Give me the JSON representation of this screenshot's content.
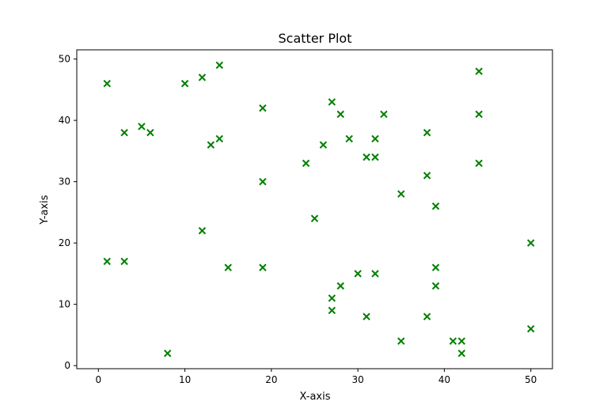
{
  "chart_data": {
    "type": "scatter",
    "title": "Scatter Plot",
    "xlabel": "X-axis",
    "ylabel": "Y-axis",
    "xlim": [
      -2.5,
      52.5
    ],
    "ylim": [
      -0.5,
      51.5
    ],
    "xticks": [
      0,
      10,
      20,
      30,
      40,
      50
    ],
    "yticks": [
      0,
      10,
      20,
      30,
      40,
      50
    ],
    "grid": false,
    "marker": "x",
    "color": "#008000",
    "points": [
      [
        1,
        46
      ],
      [
        1,
        17
      ],
      [
        3,
        38
      ],
      [
        3,
        17
      ],
      [
        5,
        39
      ],
      [
        6,
        38
      ],
      [
        8,
        2
      ],
      [
        10,
        46
      ],
      [
        12,
        47
      ],
      [
        12,
        22
      ],
      [
        13,
        36
      ],
      [
        14,
        49
      ],
      [
        14,
        37
      ],
      [
        15,
        16
      ],
      [
        19,
        42
      ],
      [
        19,
        30
      ],
      [
        19,
        16
      ],
      [
        24,
        33
      ],
      [
        25,
        24
      ],
      [
        26,
        36
      ],
      [
        27,
        43
      ],
      [
        27,
        11
      ],
      [
        27,
        9
      ],
      [
        28,
        41
      ],
      [
        28,
        13
      ],
      [
        29,
        37
      ],
      [
        30,
        15
      ],
      [
        31,
        34
      ],
      [
        31,
        8
      ],
      [
        32,
        37
      ],
      [
        32,
        34
      ],
      [
        32,
        15
      ],
      [
        33,
        41
      ],
      [
        35,
        28
      ],
      [
        35,
        4
      ],
      [
        38,
        38
      ],
      [
        38,
        31
      ],
      [
        38,
        8
      ],
      [
        39,
        26
      ],
      [
        39,
        16
      ],
      [
        39,
        13
      ],
      [
        41,
        4
      ],
      [
        42,
        4
      ],
      [
        42,
        2
      ],
      [
        44,
        48
      ],
      [
        44,
        41
      ],
      [
        44,
        33
      ],
      [
        50,
        20
      ],
      [
        50,
        6
      ]
    ]
  }
}
